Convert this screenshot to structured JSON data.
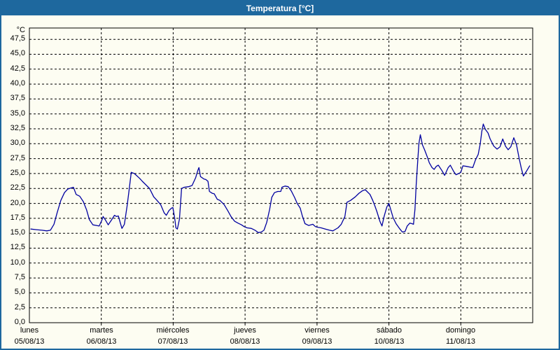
{
  "window": {
    "title": "Temperatura [°C]"
  },
  "colors": {
    "titlebar_bg": "#1e689e",
    "window_border": "#1e689e",
    "chart_bg": "#fdfdf2",
    "frame": "#000000",
    "grid": "#000000",
    "line": "#0000a0",
    "text": "#000000",
    "title_text": "#ffffff"
  },
  "chart_data": {
    "type": "line",
    "title": "Temperatura [°C]",
    "grid": "dashed",
    "legend": "none",
    "y_axis": {
      "unit": "°C",
      "min": 0,
      "max": 49.4,
      "tick_step": 2.5,
      "tick_labels": [
        "0,0",
        "2,5",
        "5,0",
        "7,5",
        "10,0",
        "12,5",
        "15,0",
        "17,5",
        "20,0",
        "22,5",
        "25,0",
        "27,5",
        "30,0",
        "32,5",
        "35,0",
        "37,5",
        "40,0",
        "42,5",
        "45,0",
        "47,5"
      ]
    },
    "x_axis": {
      "range_hours": [
        0,
        168
      ],
      "gridline_every_hours": 24,
      "days": [
        {
          "name": "lunes",
          "date": "05/08/13"
        },
        {
          "name": "martes",
          "date": "06/08/13"
        },
        {
          "name": "miércoles",
          "date": "07/08/13"
        },
        {
          "name": "jueves",
          "date": "08/08/13"
        },
        {
          "name": "viernes",
          "date": "09/08/13"
        },
        {
          "name": "sábado",
          "date": "10/08/13"
        },
        {
          "name": "domingo",
          "date": "11/08/13"
        }
      ]
    },
    "series": [
      {
        "name": "Temperatura",
        "color": "#0000a0",
        "x_unit": "hours_from_monday_00:00",
        "points": [
          [
            0.5,
            15.7
          ],
          [
            2.3,
            15.6
          ],
          [
            4.2,
            15.5
          ],
          [
            5.8,
            15.4
          ],
          [
            7,
            15.5
          ],
          [
            8.2,
            16.5
          ],
          [
            9.3,
            18.5
          ],
          [
            10.5,
            20.5
          ],
          [
            11.7,
            21.8
          ],
          [
            12.8,
            22.4
          ],
          [
            14,
            22.6
          ],
          [
            14.7,
            22.7
          ],
          [
            15.6,
            21.5
          ],
          [
            16.8,
            21.2
          ],
          [
            18,
            20.3
          ],
          [
            19.1,
            18.9
          ],
          [
            20,
            17.3
          ],
          [
            21.2,
            16.4
          ],
          [
            22.4,
            16.3
          ],
          [
            23.3,
            16.2
          ],
          [
            24.2,
            17.2
          ],
          [
            24.6,
            17.8
          ],
          [
            25.4,
            17.2
          ],
          [
            26.3,
            16.4
          ],
          [
            27.5,
            17.3
          ],
          [
            28.4,
            18
          ],
          [
            29.1,
            17.8
          ],
          [
            29.7,
            17.9
          ],
          [
            30.3,
            16.8
          ],
          [
            30.9,
            15.8
          ],
          [
            31.7,
            16.5
          ],
          [
            32.6,
            19.5
          ],
          [
            33.3,
            22.3
          ],
          [
            34,
            25.2
          ],
          [
            35,
            25
          ],
          [
            35.7,
            24.7
          ],
          [
            36.8,
            24.2
          ],
          [
            37.7,
            23.7
          ],
          [
            38.9,
            23.1
          ],
          [
            40.1,
            22.5
          ],
          [
            41.5,
            21.1
          ],
          [
            42.6,
            20.5
          ],
          [
            43.8,
            19.8
          ],
          [
            45,
            18.4
          ],
          [
            45.7,
            18
          ],
          [
            46.6,
            18.8
          ],
          [
            47.4,
            19.2
          ],
          [
            47.9,
            19.3
          ],
          [
            48.5,
            17.5
          ],
          [
            48.9,
            15.9
          ],
          [
            49.4,
            15.7
          ],
          [
            50.1,
            17.4
          ],
          [
            50.8,
            22.5
          ],
          [
            51.7,
            22.7
          ],
          [
            53.1,
            22.8
          ],
          [
            54.3,
            23
          ],
          [
            55.5,
            24.3
          ],
          [
            56.2,
            25.5
          ],
          [
            56.6,
            26
          ],
          [
            57.1,
            24.5
          ],
          [
            58.2,
            24.1
          ],
          [
            58.9,
            24
          ],
          [
            59.6,
            23.7
          ],
          [
            60.1,
            22
          ],
          [
            61,
            21.7
          ],
          [
            61.7,
            21.6
          ],
          [
            62.7,
            20.7
          ],
          [
            63.6,
            20.5
          ],
          [
            65,
            19.8
          ],
          [
            66.2,
            18.8
          ],
          [
            67.3,
            17.8
          ],
          [
            68.5,
            17
          ],
          [
            69.6,
            16.7
          ],
          [
            70.8,
            16.4
          ],
          [
            71.7,
            16.1
          ],
          [
            72.7,
            15.9
          ],
          [
            74.1,
            15.8
          ],
          [
            75.3,
            15.5
          ],
          [
            76.4,
            15.1
          ],
          [
            77.4,
            15.2
          ],
          [
            78.3,
            15.5
          ],
          [
            79.2,
            16.8
          ],
          [
            80.2,
            19
          ],
          [
            80.9,
            21
          ],
          [
            81.8,
            21.8
          ],
          [
            82.9,
            22
          ],
          [
            83.9,
            22
          ],
          [
            84.3,
            22.7
          ],
          [
            85.3,
            22.9
          ],
          [
            86.4,
            22.8
          ],
          [
            87.4,
            22.1
          ],
          [
            88.5,
            21
          ],
          [
            89.4,
            20
          ],
          [
            90.4,
            19.2
          ],
          [
            91.1,
            17.9
          ],
          [
            92,
            16.6
          ],
          [
            93.2,
            16.3
          ],
          [
            94.6,
            16.5
          ],
          [
            95.5,
            16.1
          ],
          [
            96.2,
            16
          ],
          [
            97.4,
            15.9
          ],
          [
            98.8,
            15.7
          ],
          [
            100.2,
            15.5
          ],
          [
            101.3,
            15.4
          ],
          [
            103,
            15.9
          ],
          [
            104.1,
            16.5
          ],
          [
            105.3,
            17.8
          ],
          [
            106,
            20.2
          ],
          [
            107.2,
            20.5
          ],
          [
            108.8,
            21.1
          ],
          [
            110,
            21.7
          ],
          [
            111.1,
            22.1
          ],
          [
            112.1,
            22.3
          ],
          [
            113.7,
            21.5
          ],
          [
            114.6,
            20.5
          ],
          [
            115.3,
            19.6
          ],
          [
            116,
            18.6
          ],
          [
            117,
            17
          ],
          [
            117.7,
            16.2
          ],
          [
            118.4,
            17.8
          ],
          [
            119.3,
            19.4
          ],
          [
            120,
            20
          ],
          [
            120.7,
            18.8
          ],
          [
            121.4,
            17.6
          ],
          [
            122.4,
            16.6
          ],
          [
            123.5,
            15.8
          ],
          [
            124.5,
            15.2
          ],
          [
            125.4,
            15.3
          ],
          [
            126.1,
            16.2
          ],
          [
            127,
            16.7
          ],
          [
            127.7,
            16.6
          ],
          [
            128.2,
            16.5
          ],
          [
            128.7,
            19
          ],
          [
            129.1,
            23
          ],
          [
            129.6,
            27
          ],
          [
            130,
            30
          ],
          [
            130.5,
            31.5
          ],
          [
            131.2,
            29.8
          ],
          [
            131.9,
            29
          ],
          [
            132.8,
            27.8
          ],
          [
            133.5,
            26.8
          ],
          [
            134.4,
            26
          ],
          [
            135.1,
            25.7
          ],
          [
            135.8,
            26.2
          ],
          [
            136.5,
            26.4
          ],
          [
            137.7,
            25.5
          ],
          [
            138.6,
            24.7
          ],
          [
            139.8,
            26
          ],
          [
            140.5,
            26.4
          ],
          [
            141.7,
            25.3
          ],
          [
            142.4,
            24.8
          ],
          [
            143.3,
            25
          ],
          [
            144,
            25.2
          ],
          [
            144.7,
            26.3
          ],
          [
            145.9,
            26.2
          ],
          [
            147,
            26.1
          ],
          [
            148,
            26
          ],
          [
            148.9,
            27.3
          ],
          [
            149.8,
            28.2
          ],
          [
            150.5,
            30
          ],
          [
            151,
            32
          ],
          [
            151.5,
            33.3
          ],
          [
            152.2,
            32.4
          ],
          [
            153.1,
            31.8
          ],
          [
            153.8,
            30.8
          ],
          [
            155,
            29.6
          ],
          [
            156.1,
            29.1
          ],
          [
            157.1,
            29.5
          ],
          [
            158,
            30.8
          ],
          [
            158.9,
            29.6
          ],
          [
            159.8,
            29
          ],
          [
            160.7,
            29.5
          ],
          [
            161.7,
            31
          ],
          [
            162.6,
            29.8
          ],
          [
            163.5,
            27.5
          ],
          [
            164.2,
            25.9
          ],
          [
            164.9,
            24.6
          ],
          [
            165.8,
            25.3
          ],
          [
            167,
            26.3
          ]
        ]
      }
    ]
  }
}
